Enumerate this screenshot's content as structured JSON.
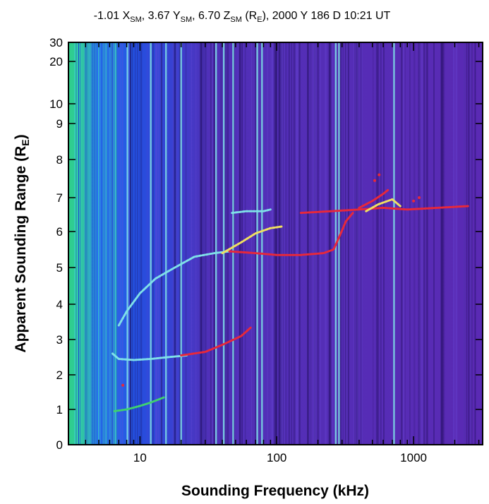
{
  "chart_data": {
    "type": "heatmap",
    "title_parts": [
      {
        "text": "-1.01 X"
      },
      {
        "text": "SM",
        "sub": true
      },
      {
        "text": ", 3.67 Y"
      },
      {
        "text": "SM",
        "sub": true
      },
      {
        "text": ", 6.70 Z"
      },
      {
        "text": "SM",
        "sub": true
      },
      {
        "text": " (R"
      },
      {
        "text": "E",
        "sub": true
      },
      {
        "text": "), 2000 Y 186 D 10:21 UT"
      }
    ],
    "xlabel": "Sounding Frequency (kHz)",
    "ylabel_main": "Apparent Sounding Range (R",
    "ylabel_sub": "E",
    "ylabel_close": ")",
    "x_scale": "log",
    "xlim": [
      3,
      3200
    ],
    "x_ticks": [
      {
        "value": 10,
        "label": "10"
      },
      {
        "value": 100,
        "label": "100"
      },
      {
        "value": 1000,
        "label": "1000"
      }
    ],
    "y_scale": "piecewise (linear 0-8, compressed 8-30)",
    "ylim": [
      0,
      30
    ],
    "y_ticks": [
      {
        "value": 0,
        "label": "0"
      },
      {
        "value": 1,
        "label": "1"
      },
      {
        "value": 2,
        "label": "2"
      },
      {
        "value": 3,
        "label": "3"
      },
      {
        "value": 4,
        "label": "4"
      },
      {
        "value": 5,
        "label": "5"
      },
      {
        "value": 6,
        "label": "6"
      },
      {
        "value": 7,
        "label": "7"
      },
      {
        "value": 8,
        "label": "8"
      },
      {
        "value": 9,
        "label": "9"
      },
      {
        "value": 10,
        "label": "10"
      },
      {
        "value": 20,
        "label": "20"
      },
      {
        "value": 30,
        "label": "30"
      }
    ],
    "colors": {
      "background": "#5a2fb8",
      "noise_low": "#1f5cf0",
      "noise_edge": "#2fd08a",
      "cyan": "#7fe0e8",
      "red": "#e8283a",
      "yellow": "#f0e060",
      "green": "#3fd070"
    },
    "vertical_lines_khz": [
      8.1,
      12,
      15.5,
      20,
      36,
      41,
      48,
      72,
      78,
      270,
      285,
      720
    ],
    "echo_traces": [
      {
        "color": "green",
        "points": [
          [
            6.5,
            0.95
          ],
          [
            8,
            1.0
          ],
          [
            10,
            1.1
          ],
          [
            12,
            1.2
          ],
          [
            15,
            1.35
          ]
        ]
      },
      {
        "color": "cyan",
        "points": [
          [
            6.3,
            2.6
          ],
          [
            7,
            2.45
          ],
          [
            9,
            2.42
          ],
          [
            12,
            2.45
          ],
          [
            16,
            2.5
          ],
          [
            22,
            2.55
          ]
        ]
      },
      {
        "color": "red",
        "points": [
          [
            20,
            2.55
          ],
          [
            30,
            2.65
          ],
          [
            40,
            2.85
          ],
          [
            55,
            3.1
          ],
          [
            65,
            3.35
          ]
        ]
      },
      {
        "color": "cyan",
        "points": [
          [
            7,
            3.4
          ],
          [
            8,
            3.8
          ],
          [
            10,
            4.3
          ],
          [
            13,
            4.7
          ],
          [
            18,
            5.0
          ],
          [
            25,
            5.3
          ],
          [
            35,
            5.4
          ],
          [
            45,
            5.45
          ]
        ]
      },
      {
        "color": "red",
        "points": [
          [
            45,
            5.45
          ],
          [
            70,
            5.4
          ],
          [
            100,
            5.35
          ],
          [
            150,
            5.35
          ],
          [
            220,
            5.4
          ],
          [
            260,
            5.5
          ],
          [
            290,
            5.9
          ],
          [
            320,
            6.3
          ],
          [
            360,
            6.55
          ]
        ]
      },
      {
        "color": "yellow",
        "points": [
          [
            40,
            5.4
          ],
          [
            55,
            5.7
          ],
          [
            70,
            5.95
          ],
          [
            90,
            6.1
          ],
          [
            110,
            6.15
          ]
        ]
      },
      {
        "color": "cyan",
        "points": [
          [
            47,
            6.55
          ],
          [
            60,
            6.6
          ],
          [
            80,
            6.6
          ],
          [
            90,
            6.65
          ]
        ]
      },
      {
        "color": "red",
        "points": [
          [
            150,
            6.55
          ],
          [
            250,
            6.6
          ],
          [
            400,
            6.65
          ],
          [
            600,
            6.7
          ],
          [
            900,
            6.65
          ],
          [
            1500,
            6.7
          ],
          [
            2500,
            6.75
          ]
        ]
      },
      {
        "color": "red",
        "points": [
          [
            400,
            6.7
          ],
          [
            500,
            6.9
          ],
          [
            600,
            7.1
          ],
          [
            650,
            7.2
          ]
        ]
      },
      {
        "color": "yellow",
        "points": [
          [
            450,
            6.6
          ],
          [
            550,
            6.8
          ],
          [
            700,
            6.95
          ],
          [
            800,
            6.75
          ]
        ]
      }
    ],
    "scatter_dots": [
      [
        7.5,
        1.7
      ],
      [
        520,
        7.45
      ],
      [
        560,
        7.6
      ],
      [
        1100,
        7.0
      ],
      [
        1000,
        6.9
      ]
    ]
  }
}
